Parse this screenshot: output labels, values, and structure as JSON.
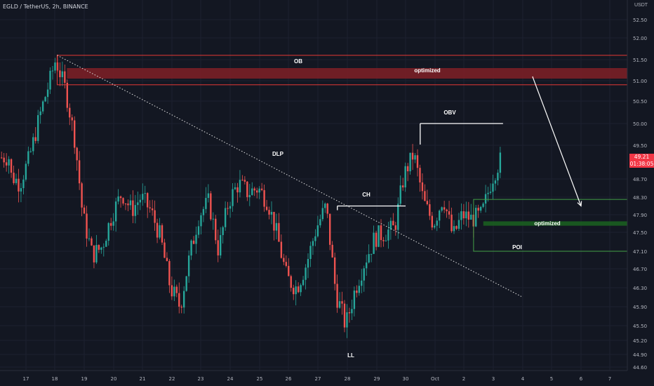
{
  "header": {
    "symbol_title": "EGLD / TetherUS, 2h, BINANCE",
    "currency": "USDT"
  },
  "price_tag": {
    "price": "49.21",
    "countdown": "01:38:05"
  },
  "colors": {
    "background": "#131722",
    "up": "#26a69a",
    "down": "#ef5350",
    "ob_zone": "#7a1f26",
    "ob_border": "#e53935",
    "poi_zone": "#1b5e20",
    "poi_border": "#43a047",
    "annotation": "#ffffff"
  },
  "chart_data": {
    "type": "candlestick",
    "price_axis": {
      "ticks": [
        "52.50",
        "52.00",
        "51.50",
        "51.00",
        "50.50",
        "50.00",
        "49.50",
        "48.70",
        "48.30",
        "47.90",
        "47.50",
        "47.10",
        "46.70",
        "46.30",
        "45.90",
        "45.50",
        "45.20",
        "44.90",
        "44.60"
      ]
    },
    "time_axis": {
      "ticks": [
        "17",
        "18",
        "19",
        "20",
        "21",
        "22",
        "23",
        "24",
        "25",
        "26",
        "27",
        "28",
        "29",
        "30",
        "Oct",
        "2",
        "3",
        "4",
        "5",
        "6",
        "7"
      ]
    },
    "last_price": 49.21,
    "price_path": [
      {
        "t": "16 12:00",
        "p": 48.8
      },
      {
        "t": "16 20:00",
        "p": 48.6
      },
      {
        "t": "17 04:00",
        "p": 49.2
      },
      {
        "t": "17 12:00",
        "p": 50.1
      },
      {
        "t": "17 20:00",
        "p": 50.9
      },
      {
        "t": "18 02:00",
        "p": 51.5
      },
      {
        "t": "18 10:00",
        "p": 50.8
      },
      {
        "t": "18 18:00",
        "p": 49.6
      },
      {
        "t": "19 00:00",
        "p": 47.9
      },
      {
        "t": "19 08:00",
        "p": 47.0
      },
      {
        "t": "19 16:00",
        "p": 47.2
      },
      {
        "t": "20 00:00",
        "p": 47.9
      },
      {
        "t": "20 08:00",
        "p": 48.4
      },
      {
        "t": "20 16:00",
        "p": 48.0
      },
      {
        "t": "21 00:00",
        "p": 48.3
      },
      {
        "t": "21 08:00",
        "p": 48.0
      },
      {
        "t": "21 16:00",
        "p": 47.4
      },
      {
        "t": "22 00:00",
        "p": 46.3
      },
      {
        "t": "22 08:00",
        "p": 45.9
      },
      {
        "t": "22 16:00",
        "p": 47.0
      },
      {
        "t": "23 00:00",
        "p": 47.9
      },
      {
        "t": "23 08:00",
        "p": 48.2
      },
      {
        "t": "23 16:00",
        "p": 47.1
      },
      {
        "t": "24 00:00",
        "p": 48.2
      },
      {
        "t": "24 08:00",
        "p": 48.6
      },
      {
        "t": "24 16:00",
        "p": 48.4
      },
      {
        "t": "25 00:00",
        "p": 48.5
      },
      {
        "t": "25 08:00",
        "p": 48.2
      },
      {
        "t": "25 16:00",
        "p": 47.4
      },
      {
        "t": "26 00:00",
        "p": 46.5
      },
      {
        "t": "26 08:00",
        "p": 46.3
      },
      {
        "t": "26 16:00",
        "p": 46.8
      },
      {
        "t": "27 00:00",
        "p": 47.6
      },
      {
        "t": "27 08:00",
        "p": 48.1
      },
      {
        "t": "27 16:00",
        "p": 46.2
      },
      {
        "t": "28 00:00",
        "p": 45.5
      },
      {
        "t": "28 08:00",
        "p": 46.3
      },
      {
        "t": "28 16:00",
        "p": 46.9
      },
      {
        "t": "29 00:00",
        "p": 47.4
      },
      {
        "t": "29 08:00",
        "p": 47.5
      },
      {
        "t": "29 16:00",
        "p": 47.6
      },
      {
        "t": "30 00:00",
        "p": 48.8
      },
      {
        "t": "30 08:00",
        "p": 49.3
      },
      {
        "t": "30 16:00",
        "p": 48.2
      },
      {
        "t": "01 00:00",
        "p": 47.7
      },
      {
        "t": "01 08:00",
        "p": 48.3
      },
      {
        "t": "01 16:00",
        "p": 47.4
      },
      {
        "t": "02 00:00",
        "p": 47.9
      },
      {
        "t": "02 08:00",
        "p": 47.8
      },
      {
        "t": "02 16:00",
        "p": 47.9
      },
      {
        "t": "03 00:00",
        "p": 48.7
      },
      {
        "t": "03 08:00",
        "p": 49.21
      }
    ],
    "annotations": [
      {
        "label": "OB",
        "kind": "order-block-outline",
        "price_top": 51.6,
        "price_bottom": 50.9,
        "from": "18 02:00",
        "to": "right-edge"
      },
      {
        "label": "optimized",
        "kind": "order-block-fill",
        "price_top": 51.3,
        "price_bottom": 51.05,
        "from": "18 10:00",
        "to": "right-edge"
      },
      {
        "label": "DLP",
        "kind": "dotted-trendline",
        "from": {
          "t": "18 02:00",
          "p": 51.6
        },
        "to": {
          "t": "04 00:00",
          "p": 46.1
        }
      },
      {
        "label": "OBV",
        "kind": "horizontal-line",
        "price": 50.0,
        "from": "30 12:00",
        "to": "03 08:00"
      },
      {
        "label": "CH",
        "kind": "horizontal-line",
        "price": 48.1,
        "from": "27 16:00",
        "to": "30 00:00"
      },
      {
        "label": "LL",
        "kind": "swing-low",
        "t": "28 08:00",
        "p": 45.2
      },
      {
        "label": "POI",
        "kind": "demand-zone-outline",
        "price_top": 48.25,
        "price_bottom": 47.1,
        "from": "02 08:00",
        "to": "right-edge"
      },
      {
        "label": "optimized",
        "kind": "demand-zone-fill",
        "price_top": 47.75,
        "price_bottom": 47.65,
        "from": "02 16:00",
        "to": "right-edge"
      },
      {
        "label": "",
        "kind": "projection-arrow",
        "from": {
          "t": "04 08:00",
          "p": 51.1
        },
        "to": {
          "t": "06 00:00",
          "p": 48.1
        }
      }
    ]
  }
}
